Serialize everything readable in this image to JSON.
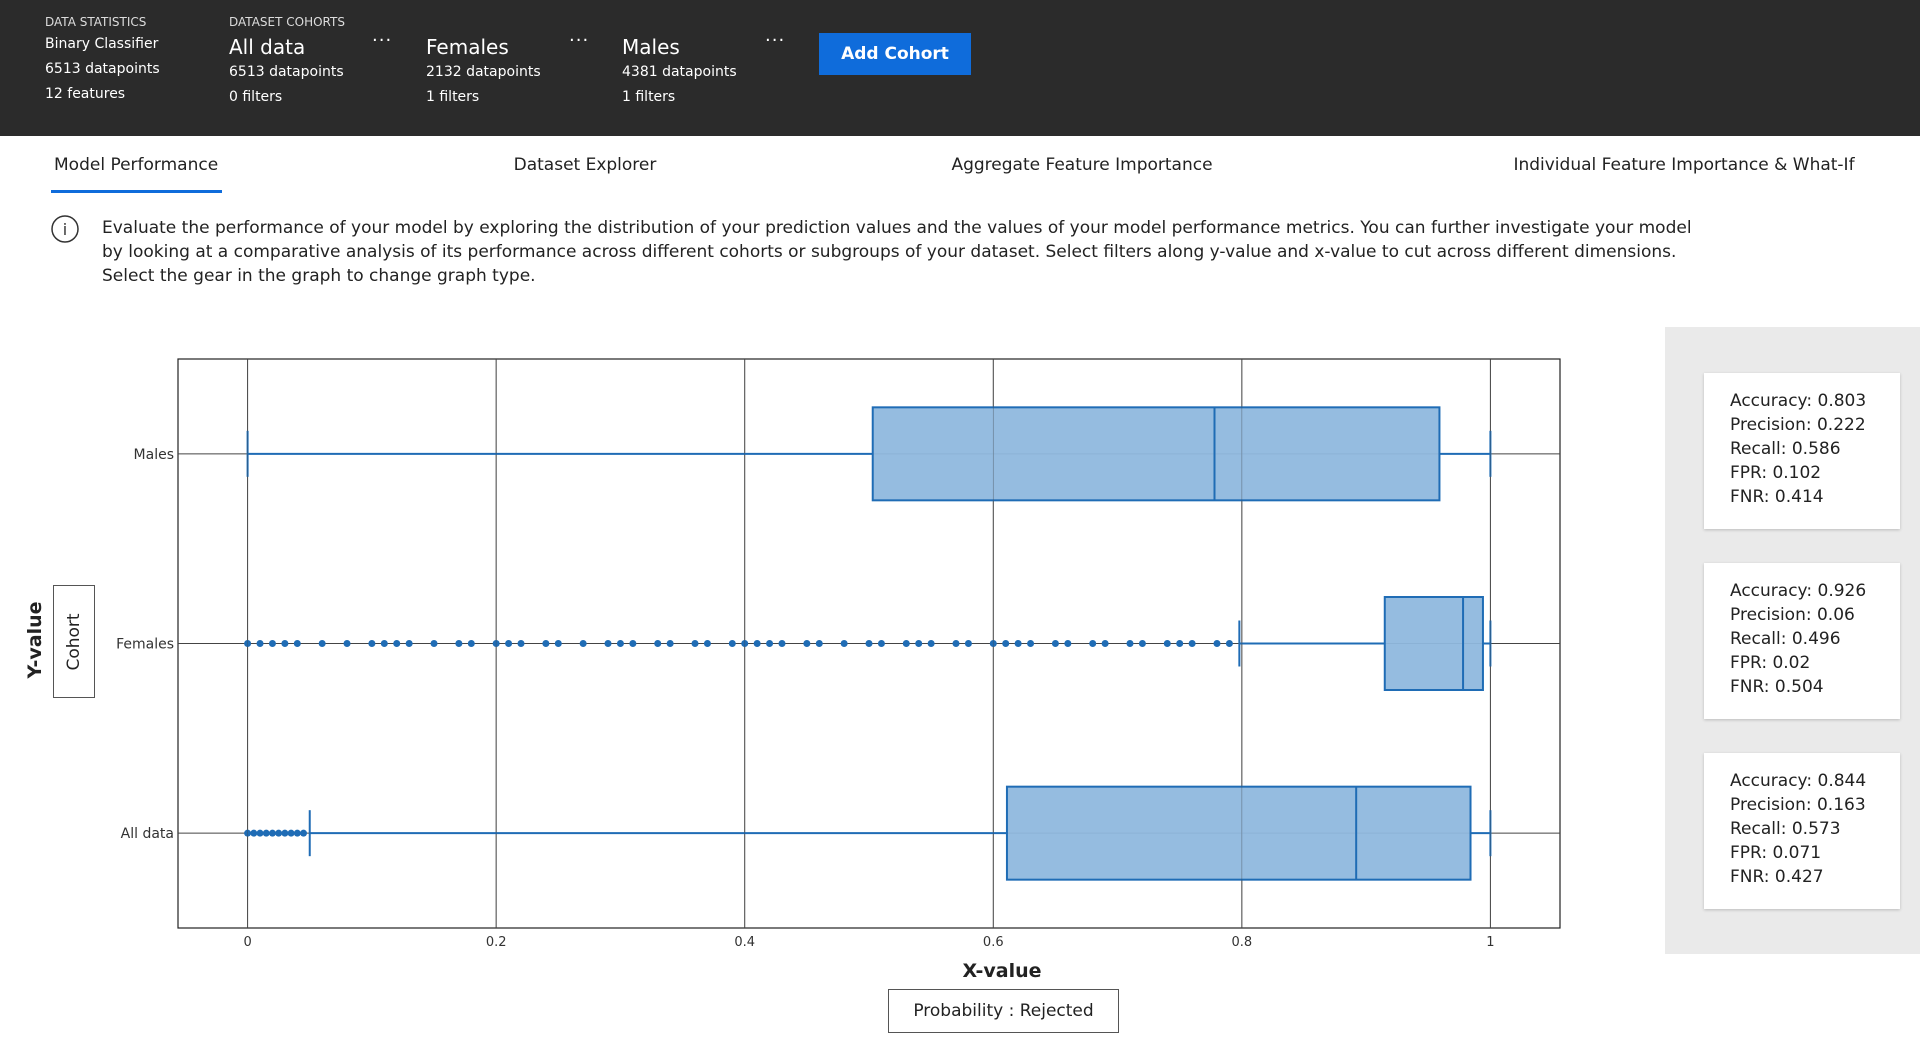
{
  "header": {
    "data_statistics": {
      "label": "DATA STATISTICS",
      "type": "Binary Classifier",
      "datapoints": "6513 datapoints",
      "features": "12 features"
    },
    "cohorts_label": "DATASET COHORTS",
    "cohorts": [
      {
        "name": "All data",
        "datapoints": "6513 datapoints",
        "filters": "0 filters"
      },
      {
        "name": "Females",
        "datapoints": "2132 datapoints",
        "filters": "1 filters"
      },
      {
        "name": "Males",
        "datapoints": "4381 datapoints",
        "filters": "1 filters"
      }
    ],
    "add_cohort": "Add Cohort"
  },
  "tabs": [
    "Model Performance",
    "Dataset Explorer",
    "Aggregate Feature Importance",
    "Individual Feature Importance & What-If"
  ],
  "description": "Evaluate the performance of your model by exploring the distribution of your prediction values and the values of your model performance metrics. You can further investigate your model by looking at a comparative analysis of its performance across different cohorts or subgroups of your dataset. Select filters along y-value and x-value to cut across different dimensions. Select the gear in the graph to change graph type.",
  "chart_data": {
    "type": "box",
    "x_label": "X-value",
    "y_label": "Y-value",
    "y_button": "Cohort",
    "x_button": "Probability : Rejected",
    "categories": [
      "All data",
      "Females",
      "Males"
    ],
    "boxes": [
      {
        "min": 0.05,
        "q1": 0.611,
        "median": 0.892,
        "q3": 0.984,
        "max": 1.0,
        "outliers": [
          0,
          0.005,
          0.01,
          0.015,
          0.02,
          0.025,
          0.03,
          0.035,
          0.04,
          0.045
        ]
      },
      {
        "min": 0.798,
        "q1": 0.915,
        "median": 0.978,
        "q3": 0.994,
        "max": 1.0,
        "outliers": [
          0,
          0.01,
          0.02,
          0.03,
          0.04,
          0.06,
          0.08,
          0.1,
          0.11,
          0.12,
          0.13,
          0.15,
          0.17,
          0.18,
          0.2,
          0.21,
          0.22,
          0.24,
          0.25,
          0.27,
          0.29,
          0.3,
          0.31,
          0.33,
          0.34,
          0.36,
          0.37,
          0.39,
          0.4,
          0.41,
          0.42,
          0.43,
          0.45,
          0.46,
          0.48,
          0.5,
          0.51,
          0.53,
          0.54,
          0.55,
          0.57,
          0.58,
          0.6,
          0.61,
          0.62,
          0.63,
          0.65,
          0.66,
          0.68,
          0.69,
          0.71,
          0.72,
          0.74,
          0.75,
          0.76,
          0.78,
          0.79
        ]
      },
      {
        "min": 0,
        "q1": 0.503,
        "median": 0.778,
        "q3": 0.959,
        "max": 1.0,
        "outliers": []
      }
    ],
    "color": "#1f6cb5",
    "fill": "#8fb8de",
    "xlim": [
      -0.056,
      1.056
    ],
    "xticks": [
      0,
      0.2,
      0.4,
      0.6,
      0.8,
      1
    ],
    "grid": true
  },
  "metrics": [
    [
      "Accuracy: 0.803",
      "Precision: 0.222",
      "Recall: 0.586",
      "FPR: 0.102",
      "FNR: 0.414"
    ],
    [
      "Accuracy: 0.926",
      "Precision: 0.06",
      "Recall: 0.496",
      "FPR: 0.02",
      "FNR: 0.504"
    ],
    [
      "Accuracy: 0.844",
      "Precision: 0.163",
      "Recall: 0.573",
      "FPR: 0.071",
      "FNR: 0.427"
    ]
  ]
}
